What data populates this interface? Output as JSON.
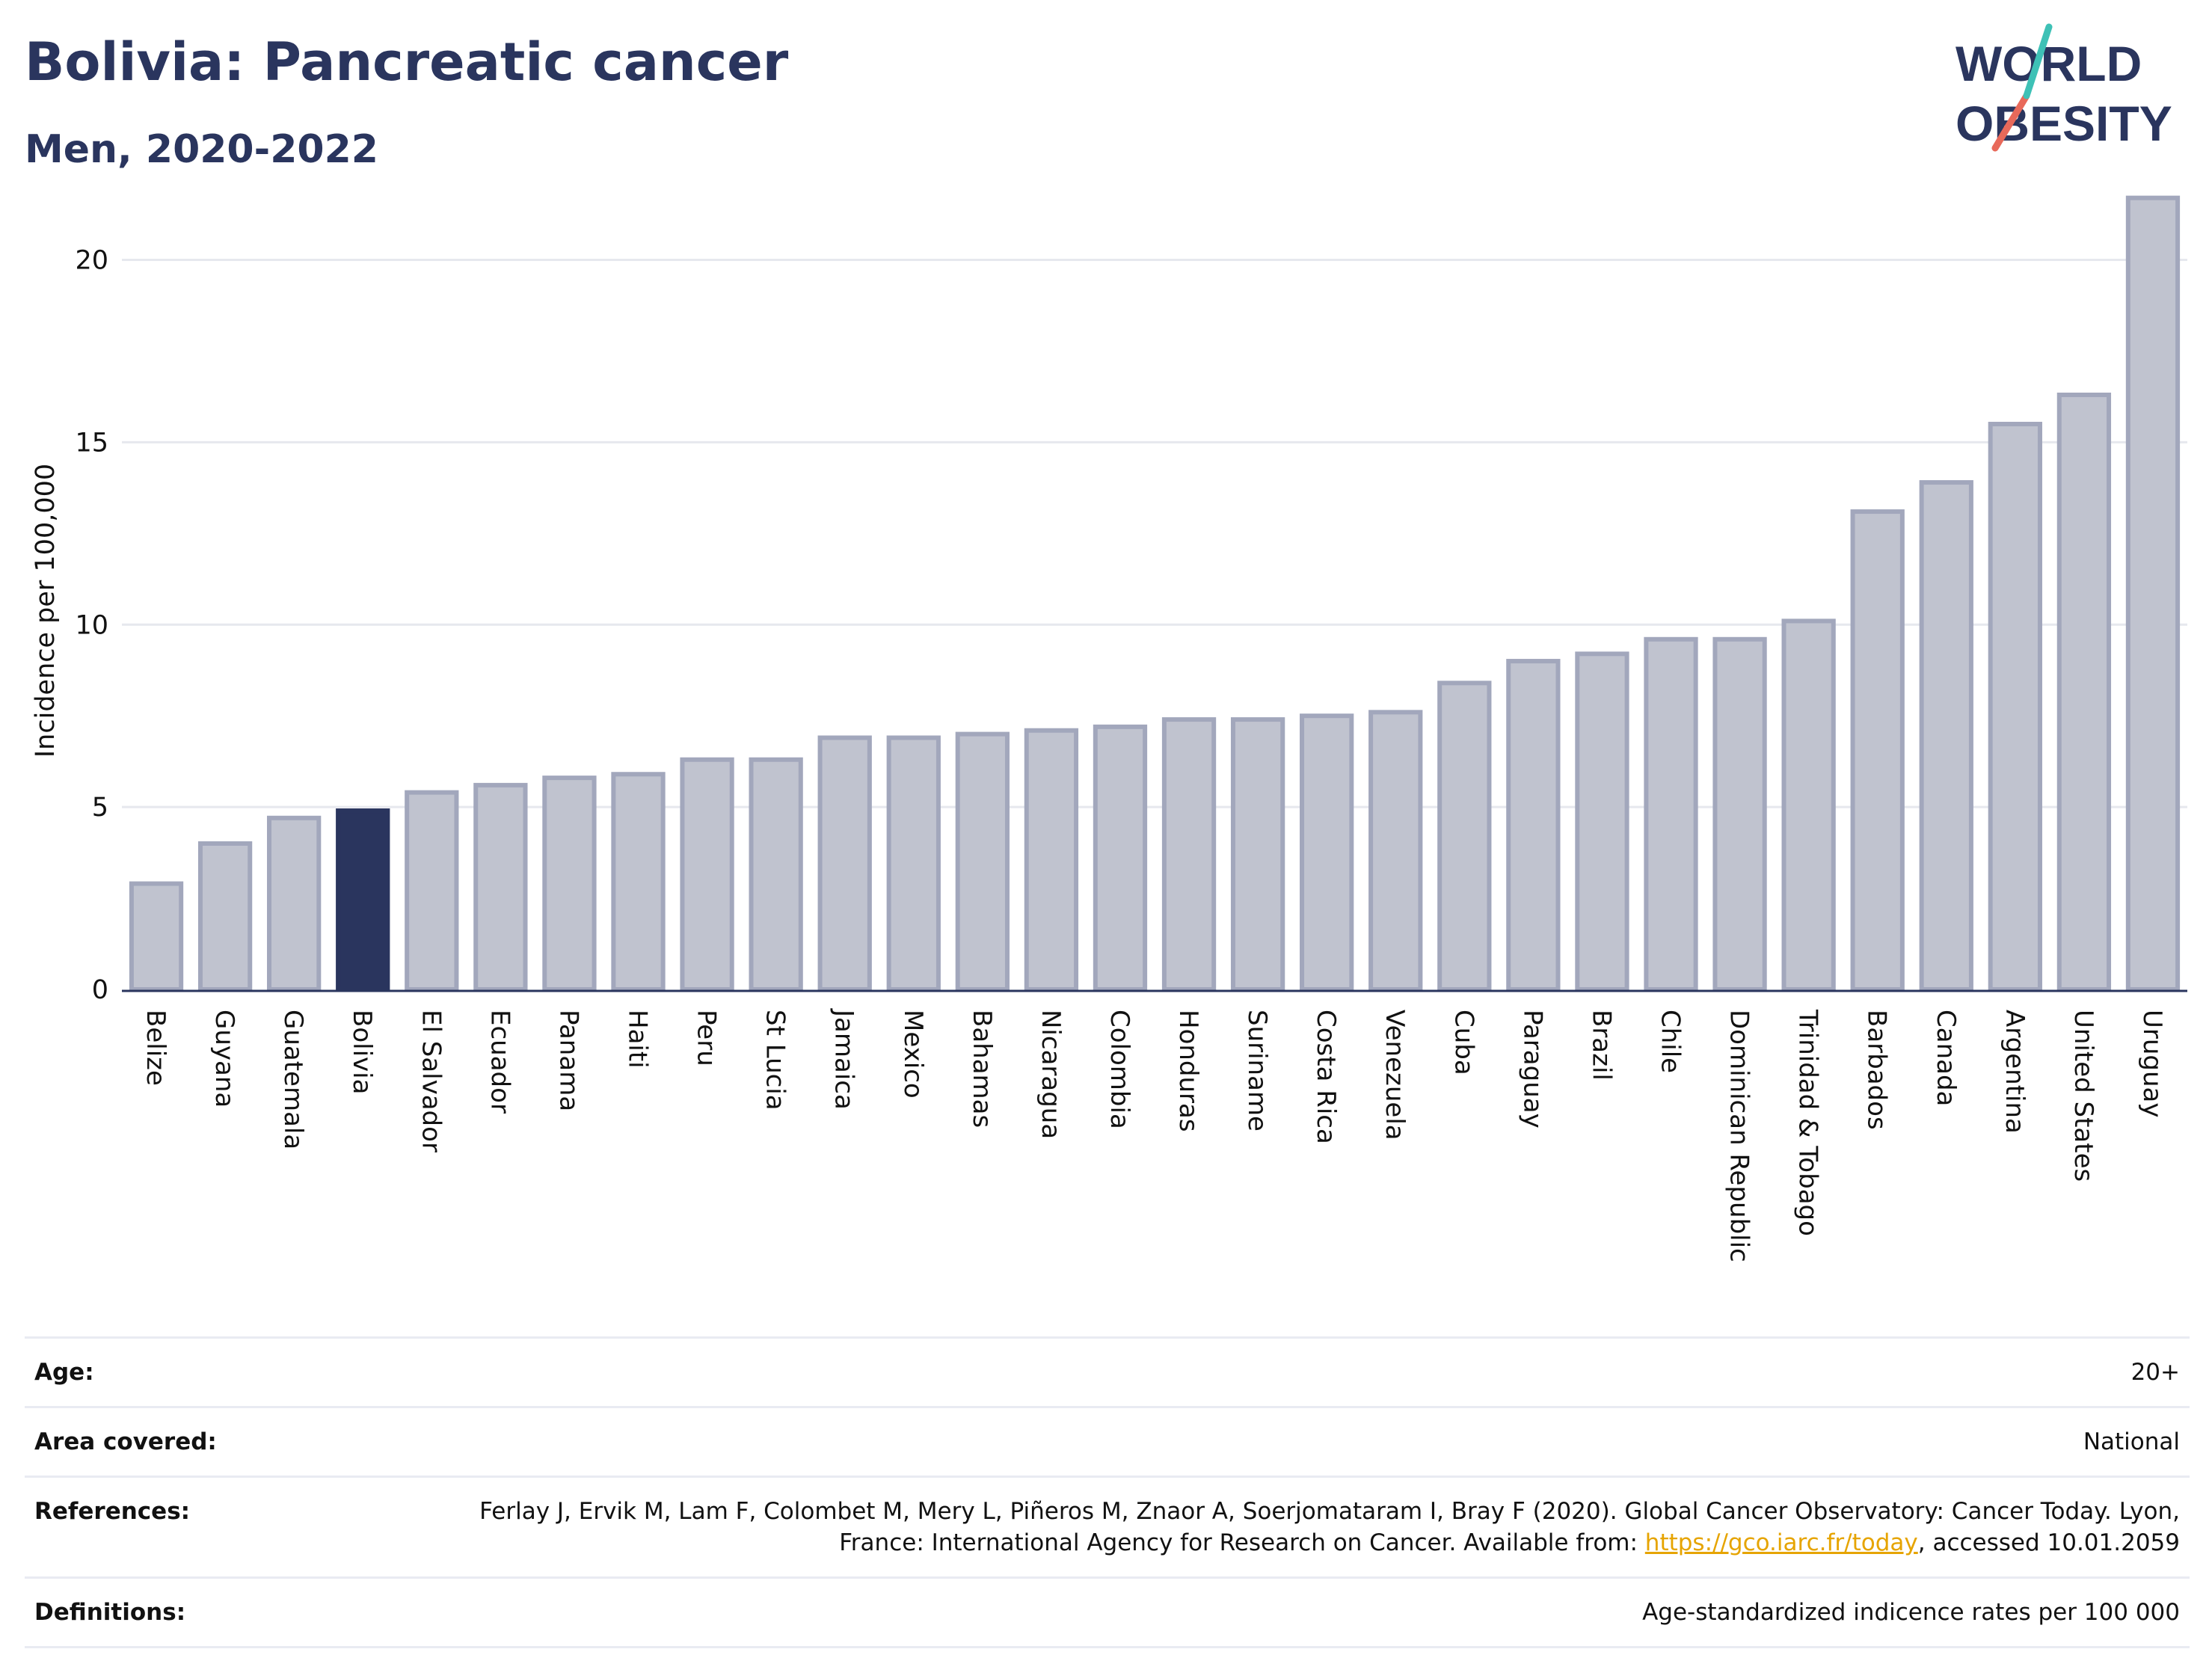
{
  "title": "Bolivia: Pancreatic cancer",
  "subtitle": "Men, 2020-2022",
  "logo": {
    "line1": "WORLD",
    "line2": "OBESITY"
  },
  "colors": {
    "highlight": "#2a355e",
    "bar": "#c0c3cf",
    "bar_stroke": "#a2a7bc",
    "title": "#2a355e",
    "logo_red": "#e8695a",
    "logo_teal": "#3ec1b6"
  },
  "chart_data": {
    "type": "bar",
    "title": "Bolivia: Pancreatic cancer",
    "subtitle": "Men, 2020-2022",
    "ylabel": "Incidence per 100,000",
    "xlabel": "",
    "ylim": [
      0,
      22
    ],
    "yticks": [
      0,
      5,
      10,
      15,
      20
    ],
    "grid": true,
    "highlight": "Bolivia",
    "categories": [
      "Belize",
      "Guyana",
      "Guatemala",
      "Bolivia",
      "El Salvador",
      "Ecuador",
      "Panama",
      "Haiti",
      "Peru",
      "St Lucia",
      "Jamaica",
      "Mexico",
      "Bahamas",
      "Nicaragua",
      "Colombia",
      "Honduras",
      "Suriname",
      "Costa Rica",
      "Venezuela",
      "Cuba",
      "Paraguay",
      "Brazil",
      "Chile",
      "Dominican Republic",
      "Trinidad & Tobago",
      "Barbados",
      "Canada",
      "Argentina",
      "United States",
      "Uruguay"
    ],
    "values": [
      2.9,
      4.0,
      4.7,
      4.9,
      5.4,
      5.6,
      5.8,
      5.9,
      6.3,
      6.3,
      6.9,
      6.9,
      7.0,
      7.1,
      7.2,
      7.4,
      7.4,
      7.5,
      7.6,
      8.4,
      9.0,
      9.2,
      9.6,
      9.6,
      10.1,
      13.1,
      13.9,
      15.5,
      16.3,
      21.7
    ]
  },
  "meta": {
    "age_label": "Age:",
    "age_value": "20+",
    "area_label": "Area covered:",
    "area_value": "National",
    "references_label": "References:",
    "references_text_before": "Ferlay J, Ervik M, Lam F, Colombet M, Mery L, Piñeros M, Znaor A, Soerjomataram I, Bray F (2020). Global Cancer Observatory: Cancer Today. Lyon, France: International Agency for Research on Cancer. Available from: ",
    "references_link": "https://gco.iarc.fr/today",
    "references_text_after": ", accessed 10.01.2059",
    "definitions_label": "Definitions:",
    "definitions_value": "Age-standardized indicence rates per 100 000"
  }
}
